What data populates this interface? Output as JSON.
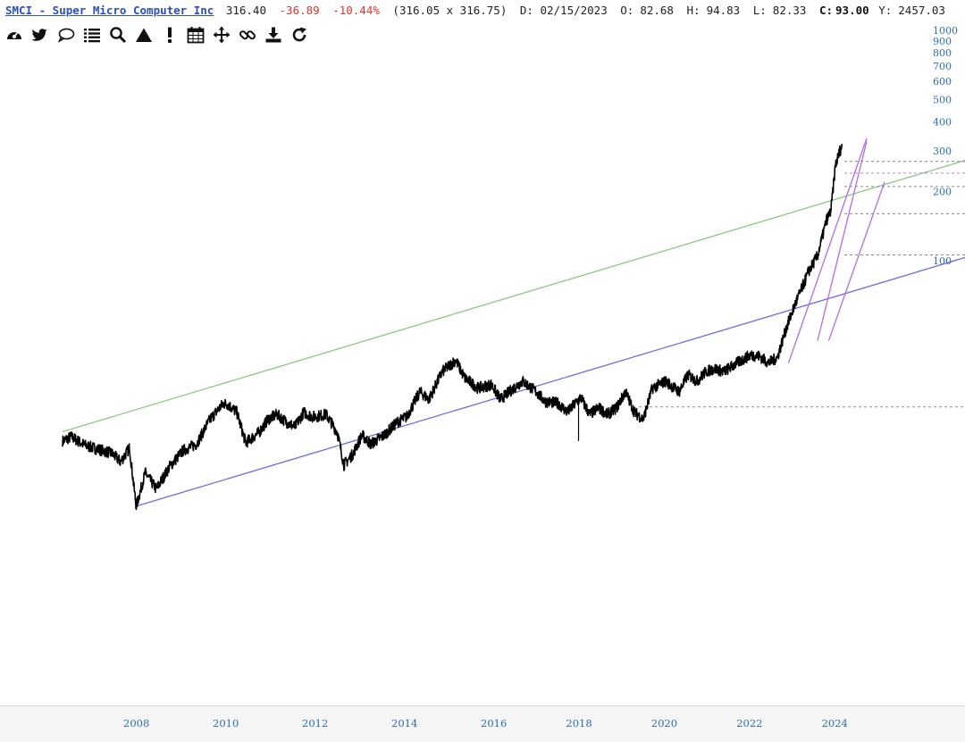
{
  "header": {
    "ticker": "SMCI - Super Micro Computer Inc",
    "price": "316.40",
    "change": "-36.89",
    "change_pct": "-10.44%",
    "range": "(316.05 x 316.75)",
    "date": "D: 02/15/2023",
    "open_label": "O:",
    "open": "82.68",
    "high_label": "H:",
    "high": "94.83",
    "low_label": "L:",
    "low": "82.33",
    "close_label": "C:",
    "close": "93.00",
    "y_label": "Y:",
    "y": "2457.03"
  },
  "toolbar": [
    {
      "name": "dashboard-icon"
    },
    {
      "name": "twitter-icon"
    },
    {
      "name": "comment-icon"
    },
    {
      "name": "list-icon"
    },
    {
      "name": "search-icon"
    },
    {
      "name": "triangle-icon"
    },
    {
      "name": "exclamation-icon"
    },
    {
      "name": "calendar-icon"
    },
    {
      "name": "move-icon"
    },
    {
      "name": "link-icon"
    },
    {
      "name": "download-icon"
    },
    {
      "name": "refresh-icon"
    }
  ],
  "colors": {
    "price": "#000000",
    "channel_lower": "#6b6bdc",
    "channel_upper": "#8cc983",
    "fan": "#b26ce6",
    "hline": "#888888",
    "hline_magenta": "#c67ae6",
    "axis_label": "#2b6cb5"
  },
  "chart_data": {
    "type": "line",
    "scale": "log",
    "y_ticks": [
      1000,
      900,
      800,
      700,
      600,
      500,
      400,
      300,
      200,
      100
    ],
    "x_ticks": [
      "2008",
      "2010",
      "2012",
      "2014",
      "2016",
      "2018",
      "2020",
      "2022",
      "2024"
    ],
    "xlim": [
      2006.2,
      2026.8
    ],
    "series": [
      {
        "values": [
          [
            2006.4,
            16.5
          ],
          [
            2006.6,
            17.2
          ],
          [
            2006.9,
            15.8
          ],
          [
            2007.2,
            15.2
          ],
          [
            2007.5,
            14.6
          ],
          [
            2007.7,
            13.4
          ],
          [
            2007.9,
            15.4
          ],
          [
            2008.0,
            10.3
          ],
          [
            2008.05,
            8.6
          ],
          [
            2008.25,
            12.0
          ],
          [
            2008.5,
            10.2
          ],
          [
            2008.8,
            12.8
          ],
          [
            2009.1,
            15.0
          ],
          [
            2009.4,
            16.0
          ],
          [
            2009.7,
            20.5
          ],
          [
            2010.0,
            24.0
          ],
          [
            2010.1,
            23.8
          ],
          [
            2010.3,
            22.0
          ],
          [
            2010.5,
            16.2
          ],
          [
            2010.8,
            18.0
          ],
          [
            2011.0,
            20.5
          ],
          [
            2011.2,
            21.5
          ],
          [
            2011.4,
            20.0
          ],
          [
            2011.6,
            19.0
          ],
          [
            2011.8,
            22.0
          ],
          [
            2012.0,
            21.0
          ],
          [
            2012.3,
            21.5
          ],
          [
            2012.55,
            18.0
          ],
          [
            2012.7,
            13.0
          ],
          [
            2012.9,
            14.5
          ],
          [
            2013.1,
            17.5
          ],
          [
            2013.3,
            16.0
          ],
          [
            2013.6,
            17.5
          ],
          [
            2013.9,
            20.0
          ],
          [
            2014.1,
            21.0
          ],
          [
            2014.4,
            27.0
          ],
          [
            2014.6,
            25.0
          ],
          [
            2014.9,
            33.0
          ],
          [
            2015.2,
            37.0
          ],
          [
            2015.4,
            31.0
          ],
          [
            2015.7,
            28.0
          ],
          [
            2016.0,
            29.0
          ],
          [
            2016.2,
            25.0
          ],
          [
            2016.5,
            28.0
          ],
          [
            2016.7,
            30.0
          ],
          [
            2017.0,
            27.0
          ],
          [
            2017.2,
            24.5
          ],
          [
            2017.5,
            24.0
          ],
          [
            2017.7,
            22.0
          ],
          [
            2018.0,
            25.5
          ],
          [
            2018.2,
            21.5
          ],
          [
            2018.4,
            23.0
          ],
          [
            2018.6,
            21.5
          ],
          [
            2018.8,
            23.0
          ],
          [
            2019.0,
            27.0
          ],
          [
            2019.2,
            22.0
          ],
          [
            2019.4,
            20.5
          ],
          [
            2019.6,
            28.0
          ],
          [
            2019.9,
            30.0
          ],
          [
            2020.2,
            27.0
          ],
          [
            2020.4,
            32.0
          ],
          [
            2020.6,
            30.0
          ],
          [
            2020.8,
            33.0
          ],
          [
            2021.0,
            34.0
          ],
          [
            2021.2,
            33.0
          ],
          [
            2021.5,
            36.0
          ],
          [
            2021.8,
            39.0
          ],
          [
            2022.0,
            38.5
          ],
          [
            2022.2,
            36.0
          ],
          [
            2022.4,
            38.0
          ],
          [
            2022.6,
            51.0
          ],
          [
            2022.8,
            65.0
          ],
          [
            2023.0,
            80.0
          ],
          [
            2023.1,
            90.0
          ],
          [
            2023.3,
            105.0
          ],
          [
            2023.5,
            150.0
          ],
          [
            2023.6,
            165.0
          ],
          [
            2023.7,
            260.0
          ],
          [
            2023.8,
            300.0
          ],
          [
            2023.85,
            316.4
          ]
        ]
      }
    ],
    "trendlines": [
      {
        "kind": "channel-upper",
        "from": [
          2006.4,
          18.1
        ],
        "to": [
          2026.8,
          280.0
        ]
      },
      {
        "kind": "channel-lower",
        "from": [
          2008.05,
          8.6
        ],
        "to": [
          2026.8,
          106.0
        ]
      },
      {
        "kind": "fan",
        "from": [
          2022.65,
          36.0
        ],
        "to": [
          2024.4,
          340.0
        ]
      },
      {
        "kind": "fan",
        "from": [
          2023.3,
          45.0
        ],
        "to": [
          2024.4,
          330.0
        ]
      },
      {
        "kind": "fan",
        "from": [
          2023.55,
          45.0
        ],
        "to": [
          2024.8,
          220.0
        ]
      }
    ],
    "hlines": [
      {
        "y": 270,
        "from_x": 2023.9,
        "style": "gray"
      },
      {
        "y": 240,
        "from_x": 2023.9,
        "style": "magenta"
      },
      {
        "y": 210,
        "from_x": 2023.9,
        "style": "gray"
      },
      {
        "y": 160,
        "from_x": 2023.9,
        "style": "gray"
      },
      {
        "y": 106,
        "from_x": 2023.9,
        "style": "gray"
      },
      {
        "y": 23.2,
        "from_x": 2019.3,
        "style": "gray"
      }
    ]
  }
}
